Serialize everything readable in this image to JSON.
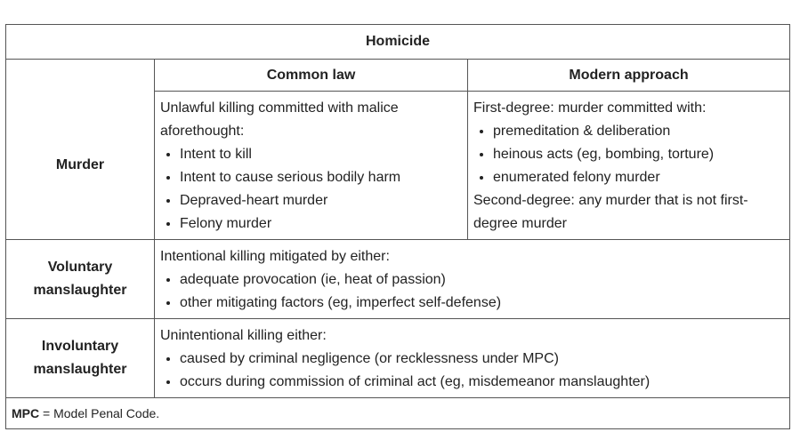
{
  "table": {
    "title": "Homicide",
    "columns": {
      "common_law": "Common law",
      "modern": "Modern approach"
    },
    "rows": {
      "murder": {
        "label": "Murder",
        "common_law": {
          "intro": "Unlawful killing committed with malice aforethought:",
          "items": [
            "Intent to kill",
            "Intent to cause serious bodily harm",
            "Depraved-heart murder",
            "Felony murder"
          ]
        },
        "modern": {
          "first_intro": "First-degree:  murder committed with:",
          "items": [
            "premeditation & deliberation",
            "heinous acts (eg, bombing, torture)",
            "enumerated felony murder"
          ],
          "second": "Second-degree:  any murder that is not first-degree murder"
        }
      },
      "voluntary": {
        "label_line1": "Voluntary",
        "label_line2": "manslaughter",
        "intro": "Intentional killing mitigated by either:",
        "items": [
          "adequate provocation (ie, heat of passion)",
          "other mitigating factors (eg, imperfect self-defense)"
        ]
      },
      "involuntary": {
        "label_line1": "Involuntary",
        "label_line2": "manslaughter",
        "intro": "Unintentional killing either:",
        "items": [
          "caused by criminal negligence (or recklessness under MPC)",
          "occurs during commission of criminal act (eg, misdemeanor manslaughter)"
        ]
      }
    },
    "footnote": {
      "abbr": "MPC",
      "text": " = Model Penal Code."
    }
  }
}
